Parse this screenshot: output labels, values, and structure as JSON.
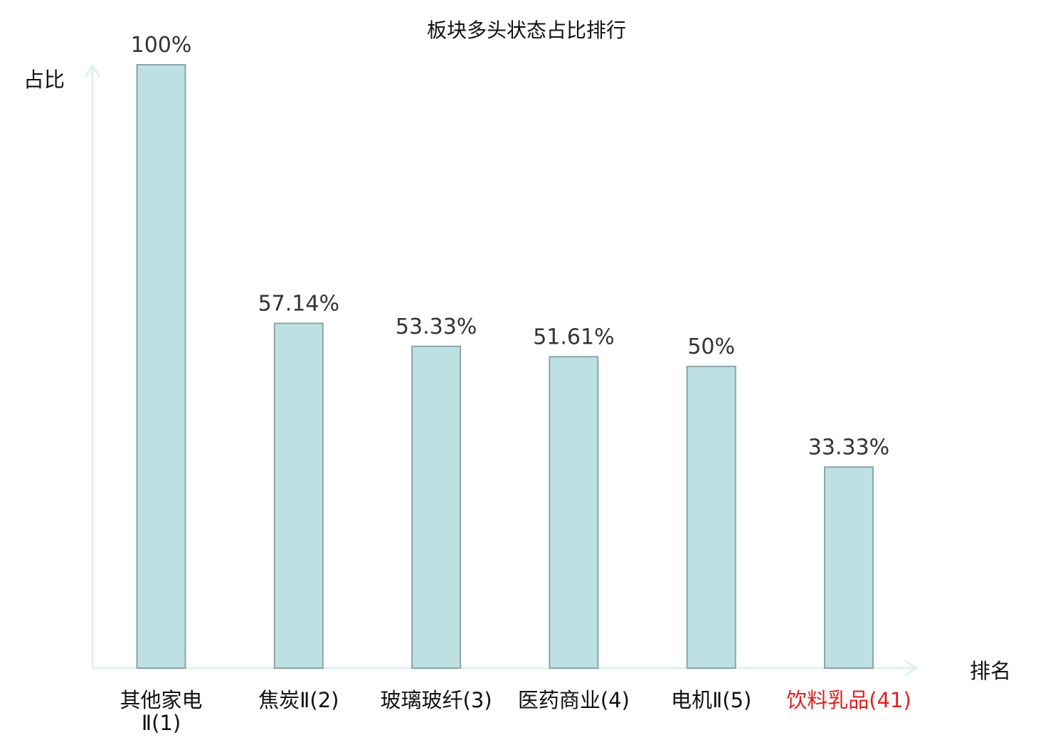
{
  "chart_data": {
    "type": "bar",
    "title": "板块多头状态占比排行",
    "ylabel": "占比",
    "xlabel": "排名",
    "categories": [
      "其他家电Ⅱ(1)",
      "焦炭Ⅱ(2)",
      "玻璃玻纤(3)",
      "医药商业(4)",
      "电机Ⅱ(5)",
      "饮料乳品(41)"
    ],
    "category_lines": [
      [
        "其他家电",
        "Ⅱ(1)"
      ],
      [
        "焦炭Ⅱ(2)"
      ],
      [
        "玻璃玻纤(3)"
      ],
      [
        "医药商业(4)"
      ],
      [
        "电机Ⅱ(5)"
      ],
      [
        "饮料乳品(41)"
      ]
    ],
    "values": [
      100,
      57.14,
      53.33,
      51.61,
      50,
      33.33
    ],
    "value_labels": [
      "100%",
      "57.14%",
      "53.33%",
      "51.61%",
      "50%",
      "33.33%"
    ],
    "highlight_index": 5,
    "ylim": [
      0,
      100
    ],
    "grid": false,
    "colors": {
      "bar_fill": "#bde0e3",
      "bar_stroke": "#8aa6aa",
      "axis": "#dff1ef",
      "label": "#333333",
      "category": "#111111",
      "highlight": "#e02020"
    }
  }
}
